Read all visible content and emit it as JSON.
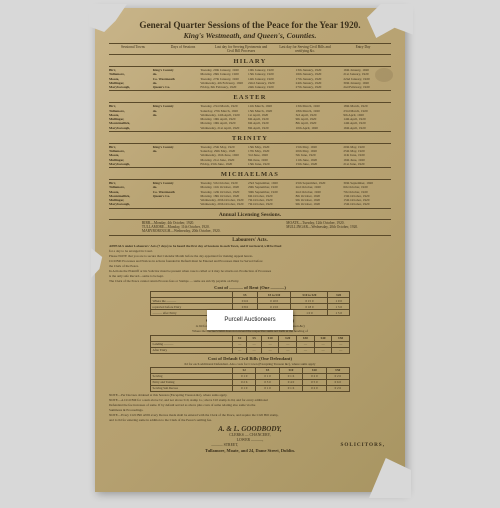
{
  "colors": {
    "paper_grad_from": "#c9b58a",
    "paper_grad_to": "#a89562",
    "ink": "#3a2f1a",
    "rule": "#5a4a2a",
    "bg": "#d8d8d8",
    "sticker_bg": "#ffffff"
  },
  "title": "General Quarter Sessions of the Peace for the Year 1920.",
  "subtitle": "King's Westmeath, and Queen's, Counties.",
  "header_cols": [
    "Sessional Towns",
    "Days of Sessions",
    "Last day for Serving Ejectments and Civil Bill Processes",
    "Last day for Serving Civil Bills and certifying &c.",
    "Entry Day"
  ],
  "terms": [
    {
      "name": "HILARY",
      "rows": [
        {
          "town": "Birr,",
          "county": "King's County",
          "c": [
            "Tuesday, 20th January, 1920",
            "10th January, 1920",
            "13th January, 1920",
            "16th January, 1920"
          ]
        },
        {
          "town": "Tullamore,",
          "county": "do.",
          "c": [
            "Monday, 26th January, 1920",
            "13th January, 1920",
            "16th January, 1920",
            "21st January, 1920"
          ]
        },
        {
          "town": "Moate,",
          "county": "Co. Westmeath",
          "c": [
            "Tuesday, 27th January, 1920",
            "14th January, 1920",
            "17th January, 1920",
            "22nd January, 1920"
          ]
        },
        {
          "town": "Mullingar,",
          "county": "do.",
          "c": [
            "Wednesday, 4th February, 1920",
            "22nd January, 1920",
            "24th January, 1920",
            "30th January, 1920"
          ]
        },
        {
          "town": "Maryborough,",
          "county": "Queen's Co.",
          "c": [
            "Friday, 6th February, 1920",
            "24th January, 1920",
            "27th January, 1920",
            "2nd February, 1920"
          ]
        }
      ]
    },
    {
      "name": "EASTER",
      "rows": [
        {
          "town": "Birr,",
          "county": "King's County",
          "c": [
            "Tuesday, 23rd March, 1920",
            "11th March, 1920",
            "13th March, 1920",
            "18th March, 1920"
          ]
        },
        {
          "town": "Tullamore,",
          "county": "do.",
          "c": [
            "Saturday, 27th March, 1920",
            "15th March, 1920",
            "18th March, 1920",
            "23rd March, 1920"
          ]
        },
        {
          "town": "Moate,",
          "county": "do.",
          "c": [
            "Wednesday, 14th April, 1920",
            "1st April, 1920",
            "3rd April, 1920",
            "9th April, 1920"
          ]
        },
        {
          "town": "Mullingar,",
          "county": "",
          "c": [
            "Monday, 19th April, 1920",
            "6th April, 1920",
            "9th April, 1920",
            "14th April, 1920"
          ]
        },
        {
          "town": "Mountmellick,",
          "county": "",
          "c": [
            "Monday, 19th April, 1920",
            "6th April, 1920",
            "8th April, 1920",
            "14th April, 1920"
          ]
        },
        {
          "town": "Maryborough,",
          "county": "",
          "c": [
            "Wednesday, 21st April, 1920",
            "8th April, 1920",
            "10th April, 1920",
            "16th April, 1920"
          ]
        }
      ]
    },
    {
      "name": "TRINITY",
      "rows": [
        {
          "town": "Birr,",
          "county": "King's County",
          "c": [
            "Tuesday, 25th May, 1920",
            "13th May, 1920",
            "15th May, 1920",
            "20th May, 1920"
          ]
        },
        {
          "town": "Tullamore,",
          "county": "do.",
          "c": [
            "Saturday, 29th May, 1920",
            "17th May, 1920",
            "20th May, 1920",
            "25th May, 1920"
          ]
        },
        {
          "town": "Moate,",
          "county": "",
          "c": [
            "Wednesday, 16th June, 1920",
            "3rd June, 1920",
            "5th June, 1920",
            "11th June, 1920"
          ]
        },
        {
          "town": "Mullingar,",
          "county": "",
          "c": [
            "Monday, 21st June, 1920",
            "8th June, 1920",
            "11th June, 1920",
            "16th June, 1920"
          ]
        },
        {
          "town": "Maryborough,",
          "county": "",
          "c": [
            "Friday, 25th June, 1920",
            "13th June, 1920",
            "15th June, 1920",
            "21st June, 1920"
          ]
        }
      ]
    },
    {
      "name": "MICHAELMAS",
      "rows": [
        {
          "town": "Birr,",
          "county": "King's County",
          "c": [
            "Tuesday, 5th October, 1920",
            "23rd September, 1920",
            "25th September, 1920",
            "30th September, 1920"
          ]
        },
        {
          "town": "Tullamore,",
          "county": "do.",
          "c": [
            "Monday, 11th October, 1920",
            "29th September, 1920",
            "2nd October, 1920",
            "6th October, 1920"
          ]
        },
        {
          "town": "Moate,",
          "county": "Co. Westmeath",
          "c": [
            "Tuesday, 12th October, 1920",
            "30th September, 1920",
            "2nd October, 1920",
            "7th October, 1920"
          ]
        },
        {
          "town": "Mountmellick,",
          "county": "Queen's Co.",
          "c": [
            "Monday, 18th October, 1920",
            "6th October, 1920",
            "8th October, 1920",
            "13th October, 1920"
          ]
        },
        {
          "town": "Mullingar,",
          "county": "",
          "c": [
            "Wednesday, 20th October, 1920",
            "7th October, 1920",
            "9th October, 1920",
            "15th October, 1920"
          ]
        },
        {
          "town": "Maryborough,",
          "county": "",
          "c": [
            "Wednesday, 20th October, 1920",
            "7th October, 1920",
            "9th October, 1920",
            "15th October, 1920"
          ]
        }
      ]
    }
  ],
  "annual_licensing": {
    "heading": "Annual Licensing Sessions.",
    "left": [
      "BIRR—Monday, 4th October, 1920.",
      "TULLAMORE—Monday, 11th October, 1920.",
      "MARYBOROUGH—Wednesday, 20th October, 1920."
    ],
    "right": [
      "MOATE—Tuesday, 12th October, 1920.",
      "MULLINGAR—Wednesday, 20th October, 1920."
    ]
  },
  "labourers": {
    "heading": "Labourers' Acts."
  },
  "notes": [
    "APPEALS under Labourers' Acts (7 days) to be heard the first day of Sessions in each Town, and if not heard, will be fixed",
    "for a day to be arranged in Court.",
    "Please NOTE that you are to secure that Calendar Month before the day appointed for making Appeal hereto.",
    "Civil Bill Processes and Notices in actions founded in Default must be Entered and Processes must be Served before",
    "the Clerk of the Peace.",
    "In Actions the Plaintiff or his Solicitor must be present when case is called or it may be struck out. Production of Processes",
    "is the only safe Record—same to be kept.",
    "The Clerk of the Peace cannot return Process fees or Stamps — same are strictly payable on Entry."
  ],
  "sticker": "Purcell Auctioneers",
  "cost_tables": [
    {
      "title": "Cost of ——— of Rent (One ———)",
      "row_labels": [
        "Where the ———",
        "replevied before Entry",
        "———  after Entry"
      ],
      "col_groups": [
        "£5",
        "£5 to £10",
        "£10 to £20",
        "£20"
      ],
      "rows": [
        [
          "0 6 6",
          "0 10 0",
          "0 15 0",
          "1 0 0"
        ],
        [
          "0 8 6",
          "0 13 0",
          "0 18 0",
          "1 3 0"
        ],
        [
          "0 10 0",
          "0 15 0",
          "1 0 0",
          "1 5 0"
        ]
      ]
    },
    {
      "title": "Costs of Ordinary Civil Bill (One Defendant)",
      "note": "1s 6d for each additional Defendant. Also costs for Crown (Excepting Treason &c)",
      "sub": "Where the Decree's limit does not exceed the respective sums set forth at the heading of",
      "col_groups": [
        "£2",
        "£5",
        "£10",
        "£20",
        "£30",
        "£40",
        "£50"
      ],
      "row_labels": [
        "Landing ———",
        "After Entry"
      ],
      "rows": [
        [
          "—",
          "—",
          "—",
          "—",
          "—",
          "—",
          "—"
        ],
        [
          "—",
          "—",
          "—",
          "—",
          "—",
          "—",
          "—"
        ]
      ]
    },
    {
      "title": "Cost of Default Civil Bills (One Defendant)",
      "sub": "6d for each additional Defendant. Also costs for Crown (Excepting Treason &c), where sums apply",
      "col_groups": [
        "£2",
        "£5",
        "£10",
        "£20",
        "£50"
      ],
      "row_labels": [
        "Serving",
        "Entry and Taxing",
        "Serving Sub Decree"
      ],
      "rows": [
        [
          "0 1 0",
          "0 1 0",
          "0 1 6",
          "0 2 0",
          "0 2 6"
        ],
        [
          "0 2 6",
          "0 3 0",
          "0 4 0",
          "0 5 0",
          "0 6 0"
        ],
        [
          "0 1 0",
          "0 1 0",
          "0 1 6",
          "0 2 0",
          "0 2 6"
        ]
      ]
    }
  ],
  "bottom_notes": [
    "NOTE—Per Decrees obtained at this Session (Excepting Treason &c), where sums apply.",
    "NOTE—A Civil Bill for a sum above £2, and not above £10, stamp 1s.; above £10 stamp 2s 6d, and for every additional",
    "Defendant the fee increases of same. If by default served as above plus costs of same relating also same via the",
    "Summons & Proceedings.",
    "NOTE—Every Civil Bill AND every Decree made shall be entered with the Clerk of the Peace, and require the Civil Bill stamp,",
    "and 1s 6d for entering same in addition to the Clerk of the Peace's settling fee."
  ],
  "footer": {
    "firm": "A. & L. GOODBODY,",
    "lines": [
      "CLERKS — CHANCERY,",
      "LOWER ———,",
      "——— STREET,"
    ],
    "solicitors": "SOLICITORS,",
    "address": "Tullamore, Moate, and 24, Dame Street, Dublin."
  }
}
